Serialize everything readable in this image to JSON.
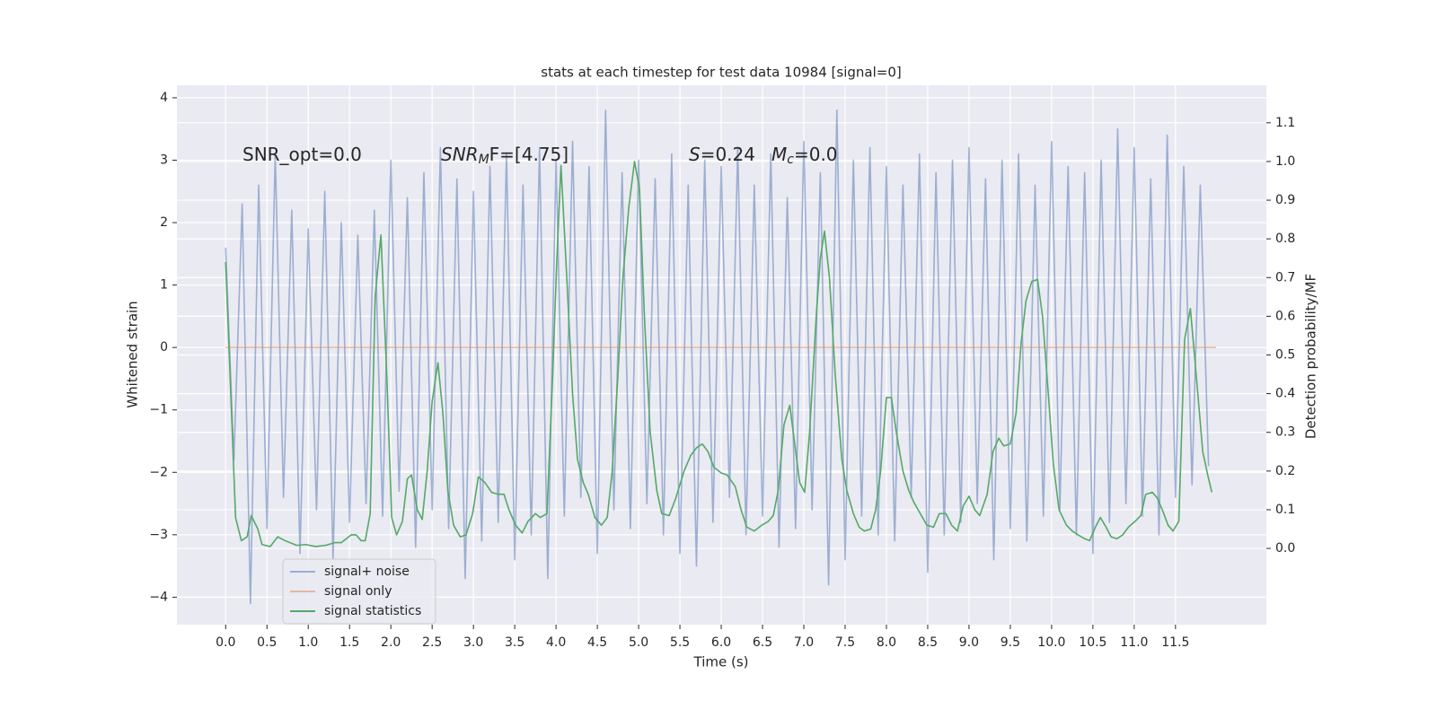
{
  "chart_data": {
    "type": "line",
    "title": "stats at each timestep for test data 10984 [signal=0]",
    "xlabel": "Time (s)",
    "ylabel": "Whitened strain",
    "y2label": "Detection probability/MF",
    "xlim": [
      -0.59,
      12.6
    ],
    "ylim": [
      -4.44,
      4.2
    ],
    "y2lim": [
      -0.197,
      1.197
    ],
    "grid": true,
    "legend": "lower left",
    "xticks": [
      {
        "value": 0,
        "label": "0.0"
      },
      {
        "value": 0.5,
        "label": "0.5"
      },
      {
        "value": 1,
        "label": "1.0"
      },
      {
        "value": 1.5,
        "label": "1.5"
      },
      {
        "value": 2,
        "label": "2.0"
      },
      {
        "value": 2.5,
        "label": "2.5"
      },
      {
        "value": 3,
        "label": "3.0"
      },
      {
        "value": 3.5,
        "label": "3.5"
      },
      {
        "value": 4,
        "label": "4.0"
      },
      {
        "value": 4.5,
        "label": "4.5"
      },
      {
        "value": 5,
        "label": "5.0"
      },
      {
        "value": 5.5,
        "label": "5.5"
      },
      {
        "value": 6,
        "label": "6.0"
      },
      {
        "value": 6.5,
        "label": "6.5"
      },
      {
        "value": 7,
        "label": "7.0"
      },
      {
        "value": 7.5,
        "label": "7.5"
      },
      {
        "value": 8,
        "label": "8.0"
      },
      {
        "value": 8.5,
        "label": "8.5"
      },
      {
        "value": 9,
        "label": "9.0"
      },
      {
        "value": 9.5,
        "label": "9.5"
      },
      {
        "value": 10,
        "label": "10.0"
      },
      {
        "value": 10.5,
        "label": "10.5"
      },
      {
        "value": 11,
        "label": "11.0"
      },
      {
        "value": 11.5,
        "label": "11.5"
      }
    ],
    "yticks": [
      {
        "value": -4,
        "label": "−4"
      },
      {
        "value": -3,
        "label": "−3"
      },
      {
        "value": -2,
        "label": "−2"
      },
      {
        "value": -1,
        "label": "−1"
      },
      0,
      1,
      2,
      3,
      4
    ],
    "y2ticks": [
      {
        "value": 0,
        "label": "0.0"
      },
      {
        "value": 0.1,
        "label": "0.1"
      },
      {
        "value": 0.2,
        "label": "0.2"
      },
      {
        "value": 0.3,
        "label": "0.3"
      },
      {
        "value": 0.4,
        "label": "0.4"
      },
      {
        "value": 0.5,
        "label": "0.5"
      },
      {
        "value": 0.6,
        "label": "0.6"
      },
      {
        "value": 0.7,
        "label": "0.7"
      },
      {
        "value": 0.8,
        "label": "0.8"
      },
      {
        "value": 0.9,
        "label": "0.9"
      },
      {
        "value": 1,
        "label": "1.0"
      },
      {
        "value": 1.1,
        "label": "1.1"
      }
    ],
    "annotations": [
      {
        "text": "SNR_opt=0.0"
      },
      {
        "base": "SNR",
        "sub": "M",
        "text": "F=[4.75]"
      },
      {
        "base": "S",
        "text": "=0.24"
      },
      {
        "base": "M",
        "sub": "c",
        "text": "=0.0"
      }
    ],
    "series": [
      {
        "name": "signal+ noise",
        "color": "#4c72b0",
        "alpha": 0.5,
        "x": [
          0,
          0.1,
          0.2,
          0.3,
          0.4,
          0.5,
          0.6,
          0.7,
          0.8,
          0.9,
          1,
          1.1,
          1.2,
          1.3,
          1.4,
          1.5,
          1.6,
          1.7,
          1.8,
          1.9,
          2,
          2.1,
          2.2,
          2.3,
          2.4,
          2.5,
          2.6,
          2.7,
          2.8,
          2.9,
          3,
          3.1,
          3.2,
          3.3,
          3.4,
          3.5,
          3.6,
          3.7,
          3.8,
          3.9,
          4,
          4.1,
          4.2,
          4.3,
          4.4,
          4.5,
          4.6,
          4.7,
          4.8,
          4.9,
          5,
          5.1,
          5.2,
          5.3,
          5.4,
          5.5,
          5.6,
          5.7,
          5.8,
          5.9,
          6,
          6.1,
          6.2,
          6.3,
          6.4,
          6.5,
          6.6,
          6.7,
          6.8,
          6.9,
          7,
          7.1,
          7.2,
          7.3,
          7.4,
          7.5,
          7.6,
          7.7,
          7.8,
          7.9,
          8,
          8.1,
          8.2,
          8.3,
          8.4,
          8.5,
          8.6,
          8.7,
          8.8,
          8.9,
          9,
          9.1,
          9.2,
          9.3,
          9.4,
          9.5,
          9.6,
          9.7,
          9.8,
          9.9,
          10,
          10.1,
          10.2,
          10.3,
          10.4,
          10.5,
          10.6,
          10.7,
          10.8,
          10.9,
          11,
          11.1,
          11.2,
          11.3,
          11.4,
          11.5,
          11.6,
          11.7,
          11.8,
          11.9
        ],
        "values": [
          1.6,
          -1.8,
          2.3,
          -4.1,
          2.6,
          -2.9,
          3.1,
          -2.4,
          2.2,
          -3.3,
          1.9,
          -2.6,
          2.5,
          -3.4,
          2.0,
          -2.8,
          1.8,
          -2.5,
          2.2,
          -2.7,
          3.0,
          -2.3,
          2.4,
          -3.2,
          2.8,
          -2.6,
          3.2,
          -2.9,
          2.7,
          -3.7,
          2.5,
          -3.1,
          2.9,
          -2.8,
          3.1,
          -3.4,
          2.6,
          -3.0,
          3.2,
          -3.7,
          3.0,
          -2.7,
          3.3,
          -2.4,
          2.9,
          -3.3,
          3.8,
          -2.6,
          2.8,
          -2.9,
          3.0,
          -2.5,
          2.7,
          -3.0,
          3.1,
          -3.3,
          2.6,
          -3.5,
          3.0,
          -2.8,
          2.9,
          -2.4,
          3.2,
          -3.0,
          2.6,
          -2.7,
          3.1,
          -3.2,
          2.4,
          -2.9,
          3.3,
          -2.6,
          2.8,
          -3.8,
          3.8,
          -3.4,
          3.0,
          -2.7,
          3.2,
          -3.0,
          2.9,
          -3.1,
          2.6,
          -2.4,
          3.1,
          -3.6,
          2.8,
          -3.0,
          3.0,
          -2.8,
          3.2,
          -2.5,
          2.7,
          -3.4,
          3.0,
          -2.9,
          3.1,
          -3.1,
          2.6,
          -2.7,
          3.3,
          -2.6,
          2.9,
          -3.0,
          2.8,
          -3.3,
          3.0,
          -2.8,
          3.5,
          -2.5,
          3.2,
          -2.7,
          2.7,
          -3.0,
          3.4,
          -2.4,
          2.9,
          -2.2,
          2.6,
          -1.9
        ]
      },
      {
        "name": "signal only",
        "color": "#dd8452",
        "alpha": 0.5,
        "x": [
          0,
          11.99
        ],
        "values": [
          0,
          0
        ]
      },
      {
        "name": "signal statistics",
        "color": "#55a868",
        "alpha": 1,
        "axis": "y2",
        "x": [
          0,
          0.12,
          0.19,
          0.26,
          0.31,
          0.39,
          0.44,
          0.54,
          0.63,
          0.72,
          0.86,
          0.97,
          1.09,
          1.21,
          1.32,
          1.4,
          1.52,
          1.58,
          1.64,
          1.69,
          1.75,
          1.81,
          1.88,
          1.95,
          2.01,
          2.07,
          2.14,
          2.2,
          2.25,
          2.32,
          2.38,
          2.44,
          2.5,
          2.57,
          2.63,
          2.69,
          2.76,
          2.84,
          2.91,
          2.99,
          3.06,
          3.14,
          3.22,
          3.3,
          3.37,
          3.43,
          3.51,
          3.59,
          3.66,
          3.75,
          3.81,
          3.89,
          3.96,
          4.01,
          4.06,
          4.13,
          4.2,
          4.26,
          4.33,
          4.39,
          4.47,
          4.55,
          4.62,
          4.68,
          4.75,
          4.81,
          4.88,
          4.95,
          5.01,
          5.07,
          5.14,
          5.22,
          5.28,
          5.37,
          5.45,
          5.55,
          5.63,
          5.7,
          5.77,
          5.84,
          5.91,
          6.0,
          6.07,
          6.17,
          6.24,
          6.31,
          6.4,
          6.49,
          6.57,
          6.63,
          6.69,
          6.76,
          6.83,
          6.89,
          6.95,
          7.01,
          7.07,
          7.15,
          7.2,
          7.25,
          7.31,
          7.38,
          7.46,
          7.52,
          7.6,
          7.67,
          7.73,
          7.81,
          7.87,
          7.93,
          8.0,
          8.06,
          8.12,
          8.2,
          8.27,
          8.33,
          8.41,
          8.49,
          8.57,
          8.64,
          8.72,
          8.79,
          8.86,
          8.93,
          9.0,
          9.07,
          9.13,
          9.22,
          9.29,
          9.36,
          9.42,
          9.5,
          9.57,
          9.63,
          9.69,
          9.76,
          9.83,
          9.89,
          9.96,
          10.02,
          10.09,
          10.18,
          10.25,
          10.32,
          10.4,
          10.46,
          10.53,
          10.59,
          10.66,
          10.72,
          10.79,
          10.86,
          10.93,
          11.01,
          11.08,
          11.14,
          11.22,
          11.28,
          11.34,
          11.41,
          11.47,
          11.54,
          11.61,
          11.68,
          11.75,
          11.83,
          11.89,
          11.94
        ],
        "values": [
          0.74,
          0.08,
          0.02,
          0.03,
          0.085,
          0.05,
          0.01,
          0.005,
          0.03,
          0.02,
          0.008,
          0.01,
          0.005,
          0.008,
          0.015,
          0.015,
          0.035,
          0.035,
          0.02,
          0.02,
          0.09,
          0.65,
          0.81,
          0.45,
          0.08,
          0.035,
          0.07,
          0.18,
          0.19,
          0.1,
          0.075,
          0.2,
          0.38,
          0.48,
          0.35,
          0.15,
          0.06,
          0.03,
          0.035,
          0.09,
          0.185,
          0.17,
          0.145,
          0.14,
          0.14,
          0.1,
          0.06,
          0.04,
          0.07,
          0.09,
          0.08,
          0.09,
          0.45,
          0.75,
          0.99,
          0.7,
          0.4,
          0.23,
          0.17,
          0.14,
          0.08,
          0.06,
          0.08,
          0.2,
          0.45,
          0.7,
          0.88,
          1.0,
          0.93,
          0.6,
          0.3,
          0.15,
          0.09,
          0.085,
          0.13,
          0.2,
          0.24,
          0.26,
          0.27,
          0.25,
          0.21,
          0.195,
          0.19,
          0.16,
          0.1,
          0.055,
          0.045,
          0.06,
          0.07,
          0.085,
          0.15,
          0.32,
          0.37,
          0.27,
          0.17,
          0.145,
          0.3,
          0.6,
          0.75,
          0.82,
          0.7,
          0.45,
          0.23,
          0.15,
          0.09,
          0.055,
          0.045,
          0.05,
          0.1,
          0.2,
          0.39,
          0.39,
          0.3,
          0.2,
          0.15,
          0.12,
          0.09,
          0.06,
          0.055,
          0.09,
          0.09,
          0.06,
          0.045,
          0.11,
          0.135,
          0.1,
          0.085,
          0.14,
          0.25,
          0.285,
          0.265,
          0.27,
          0.35,
          0.53,
          0.64,
          0.69,
          0.695,
          0.6,
          0.4,
          0.22,
          0.1,
          0.06,
          0.045,
          0.035,
          0.025,
          0.02,
          0.055,
          0.08,
          0.055,
          0.03,
          0.025,
          0.035,
          0.055,
          0.07,
          0.085,
          0.14,
          0.145,
          0.13,
          0.1,
          0.06,
          0.045,
          0.07,
          0.54,
          0.62,
          0.45,
          0.25,
          0.19,
          0.145
        ]
      }
    ]
  }
}
